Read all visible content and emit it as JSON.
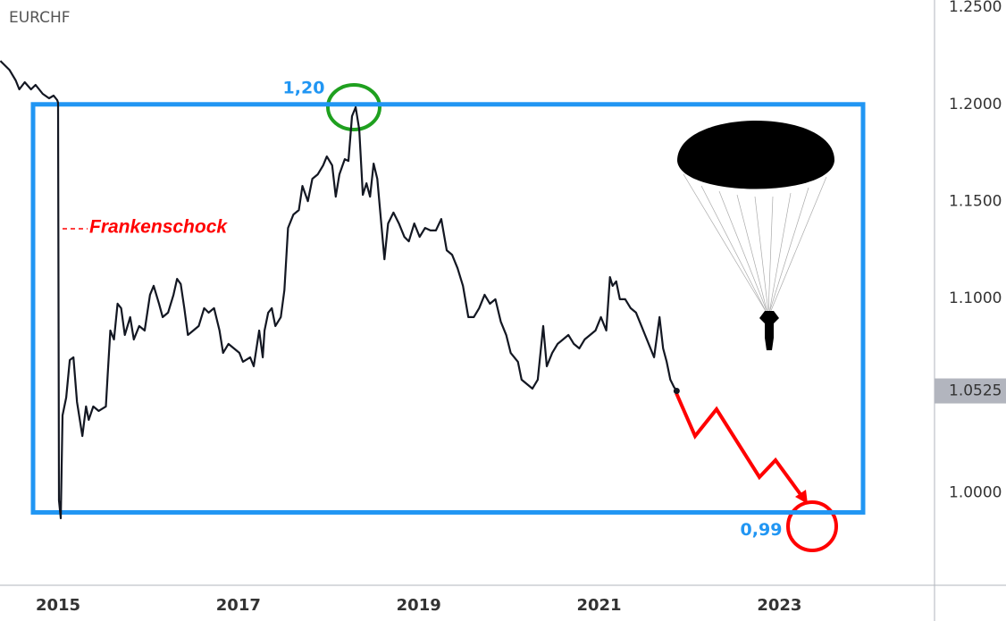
{
  "chart_data": {
    "type": "line",
    "title": "EURCHF",
    "color": "#131722",
    "x": [
      2014.36,
      2014.46,
      2014.53,
      2014.57,
      2014.63,
      2014.7,
      2014.75,
      2014.83,
      2014.9,
      2014.95,
      2014.99,
      2015.0,
      2015.01,
      2015.03,
      2015.05,
      2015.09,
      2015.13,
      2015.17,
      2015.21,
      2015.27,
      2015.31,
      2015.34,
      2015.39,
      2015.45,
      2015.53,
      2015.55,
      2015.58,
      2015.62,
      2015.66,
      2015.7,
      2015.74,
      2015.8,
      2015.84,
      2015.9,
      2015.96,
      2016.02,
      2016.06,
      2016.12,
      2016.16,
      2016.22,
      2016.28,
      2016.32,
      2016.36,
      2016.4,
      2016.44,
      2016.5,
      2016.56,
      2016.62,
      2016.67,
      2016.73,
      2016.79,
      2016.83,
      2016.89,
      2016.95,
      2017.01,
      2017.05,
      2017.13,
      2017.17,
      2017.23,
      2017.27,
      2017.29,
      2017.33,
      2017.37,
      2017.41,
      2017.47,
      2017.51,
      2017.55,
      2017.61,
      2017.67,
      2017.71,
      2017.77,
      2017.82,
      2017.88,
      2017.94,
      2017.98,
      2018.04,
      2018.08,
      2018.12,
      2018.18,
      2018.22,
      2018.26,
      2018.3,
      2018.34,
      2018.38,
      2018.42,
      2018.46,
      2018.5,
      2018.54,
      2018.58,
      2018.62,
      2018.66,
      2018.72,
      2018.78,
      2018.84,
      2018.89,
      2018.95,
      2019.01,
      2019.07,
      2019.13,
      2019.19,
      2019.25,
      2019.31,
      2019.37,
      2019.43,
      2019.49,
      2019.55,
      2019.61,
      2019.67,
      2019.73,
      2019.79,
      2019.85,
      2019.91,
      2019.97,
      2020.02,
      2020.1,
      2020.14,
      2020.2,
      2020.26,
      2020.32,
      2020.38,
      2020.42,
      2020.48,
      2020.54,
      2020.6,
      2020.66,
      2020.72,
      2020.78,
      2020.84,
      2020.9,
      2020.96,
      2021.02,
      2021.08,
      2021.12,
      2021.15,
      2021.19,
      2021.23,
      2021.29,
      2021.35,
      2021.41,
      2021.47,
      2021.51,
      2021.57,
      2021.61,
      2021.67,
      2021.71,
      2021.75,
      2021.79,
      2021.83,
      2021.86
    ],
    "values": [
      1.2224,
      1.2178,
      1.2123,
      1.2077,
      1.2114,
      1.2077,
      1.21,
      1.2054,
      1.2031,
      1.2045,
      1.2022,
      1.2008,
      0.9962,
      0.987,
      1.0399,
      1.0491,
      1.0684,
      1.0698,
      1.0468,
      1.0293,
      1.0445,
      1.0376,
      1.0445,
      1.0422,
      1.0445,
      1.0606,
      1.0836,
      1.079,
      1.0974,
      1.0951,
      1.0813,
      1.0905,
      1.079,
      1.0859,
      1.0836,
      1.102,
      1.1066,
      1.0974,
      1.0905,
      1.0928,
      1.102,
      1.1102,
      1.1075,
      1.0951,
      1.0813,
      1.0836,
      1.0859,
      1.0951,
      1.0928,
      1.0951,
      1.0836,
      1.0721,
      1.0767,
      1.0744,
      1.0721,
      1.0675,
      1.0698,
      1.0652,
      1.0836,
      1.0698,
      1.0836,
      1.0928,
      1.0951,
      1.0859,
      1.0905,
      1.1043,
      1.1364,
      1.1433,
      1.1456,
      1.158,
      1.1502,
      1.1617,
      1.164,
      1.1686,
      1.1732,
      1.1686,
      1.1525,
      1.164,
      1.1718,
      1.1709,
      1.1939,
      1.1985,
      1.187,
      1.1534,
      1.1594,
      1.1525,
      1.1695,
      1.1617,
      1.141,
      1.1203,
      1.1387,
      1.1443,
      1.1387,
      1.1318,
      1.1295,
      1.1387,
      1.1318,
      1.1364,
      1.1351,
      1.1351,
      1.141,
      1.1249,
      1.1226,
      1.1157,
      1.1066,
      1.0905,
      1.0905,
      1.0951,
      1.102,
      1.0974,
      1.0997,
      1.0882,
      1.0813,
      1.0721,
      1.0675,
      1.0583,
      1.056,
      1.0537,
      1.0583,
      1.0859,
      1.0652,
      1.0721,
      1.0767,
      1.079,
      1.0813,
      1.0767,
      1.0744,
      1.079,
      1.0813,
      1.0836,
      1.0905,
      1.0836,
      1.1111,
      1.1066,
      1.1089,
      1.0997,
      1.0997,
      1.0951,
      1.0928,
      1.0859,
      1.0813,
      1.0744,
      1.0698,
      1.0905,
      1.0744,
      1.0675,
      1.0583,
      1.0546,
      1.0525
    ],
    "xlim": [
      2014.356,
      2024.72
    ],
    "xticks": [
      2015,
      2017,
      2019,
      2021,
      2023
    ],
    "ylim": [
      0.9525,
      1.2537
    ],
    "yticks": [
      {
        "value": 1.25,
        "label": "1.2500"
      },
      {
        "value": 1.2,
        "label": "1.2000"
      },
      {
        "value": 1.15,
        "label": "1.1500"
      },
      {
        "value": 1.1,
        "label": "1.1000"
      },
      {
        "value": 1.0,
        "label": "1.0000"
      }
    ],
    "grid": false,
    "last_value": {
      "value": 1.0525,
      "label": "1.0525"
    },
    "range_box": {
      "top": {
        "value": 1.2,
        "label": "1,20"
      },
      "bottom": {
        "value": 0.99,
        "label": "0,99"
      },
      "color": "#2196f3"
    },
    "annotation": "Frankenschock"
  }
}
